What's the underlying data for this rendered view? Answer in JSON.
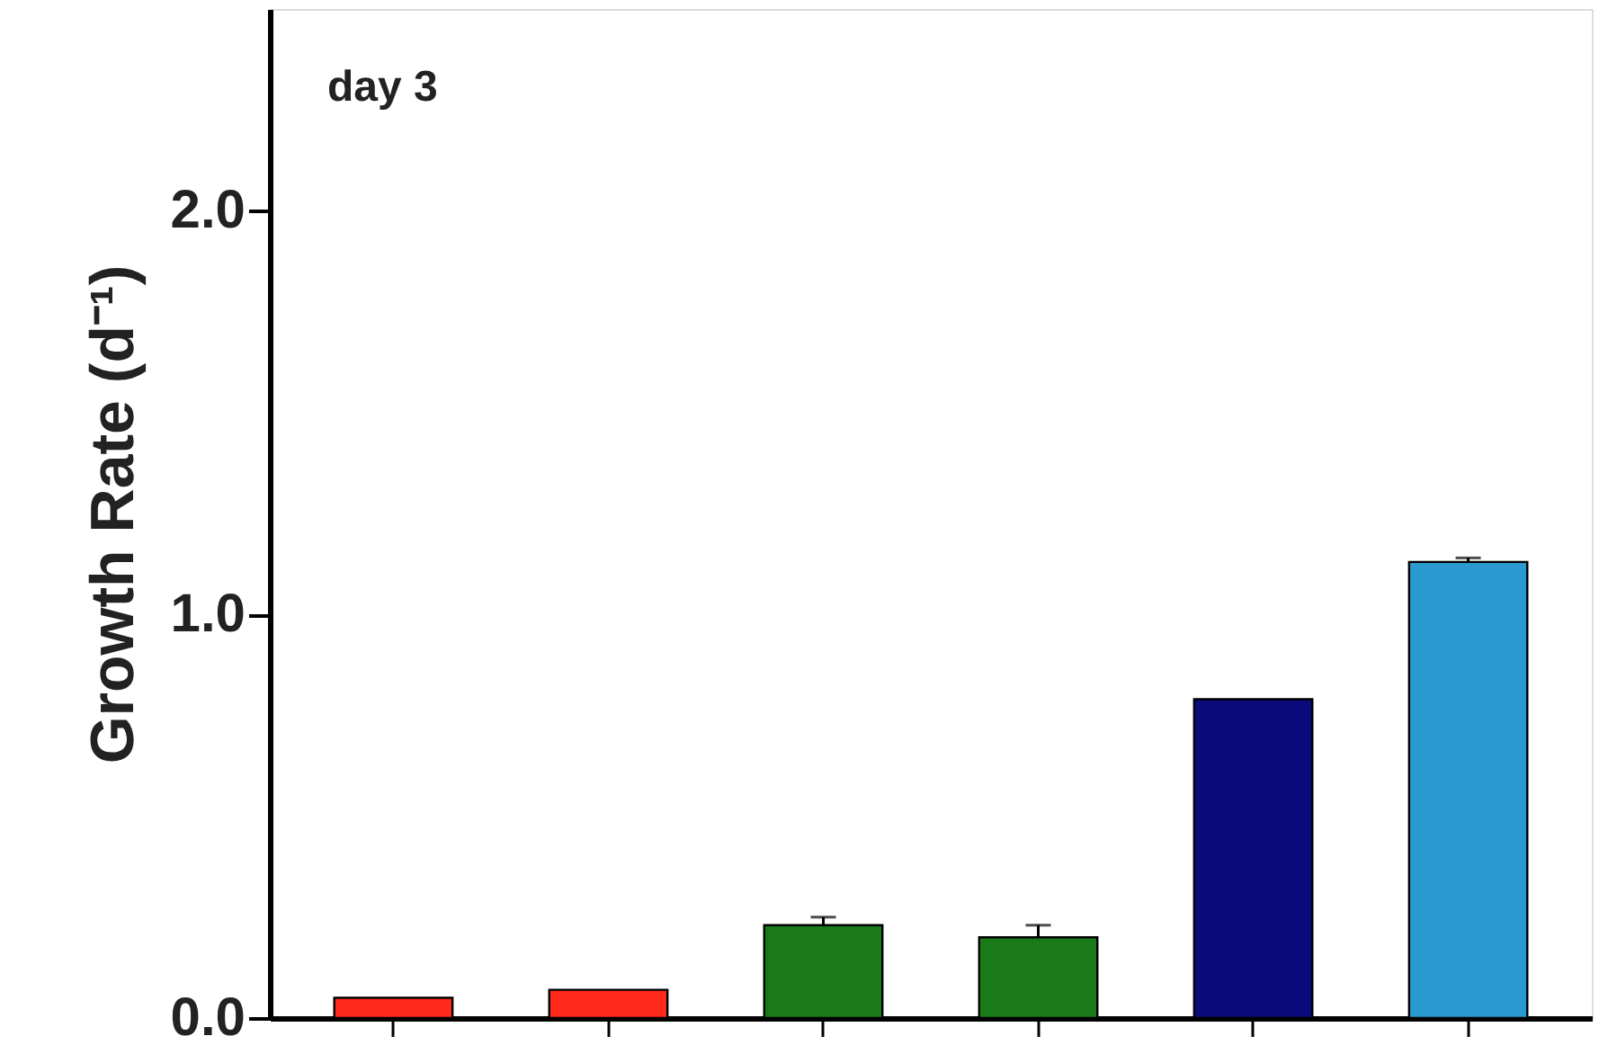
{
  "chart_data": {
    "type": "bar",
    "ylabel": "Growth Rate (d⁻¹)",
    "annotations": [
      "day 3"
    ],
    "categories": [
      null,
      null,
      null,
      null,
      null,
      null
    ],
    "values": [
      0.05,
      0.07,
      0.23,
      0.2,
      0.79,
      1.13
    ],
    "colors": [
      "#ff2a1a",
      "#ff2a1a",
      "#1a7a1a",
      "#1a7a1a",
      "#0a0a7a",
      "#2a9ad0"
    ],
    "errors": [
      null,
      null,
      [
        0.23,
        0.25
      ],
      [
        0.2,
        0.23
      ],
      null,
      [
        1.13,
        1.14
      ]
    ],
    "ylim": [
      0,
      2.5
    ],
    "yticks": [
      {
        "value": 0,
        "label": "0.0"
      },
      {
        "value": 1,
        "label": "1.0"
      },
      {
        "value": 2,
        "label": "2.0"
      }
    ],
    "tick_labels": "y"
  }
}
